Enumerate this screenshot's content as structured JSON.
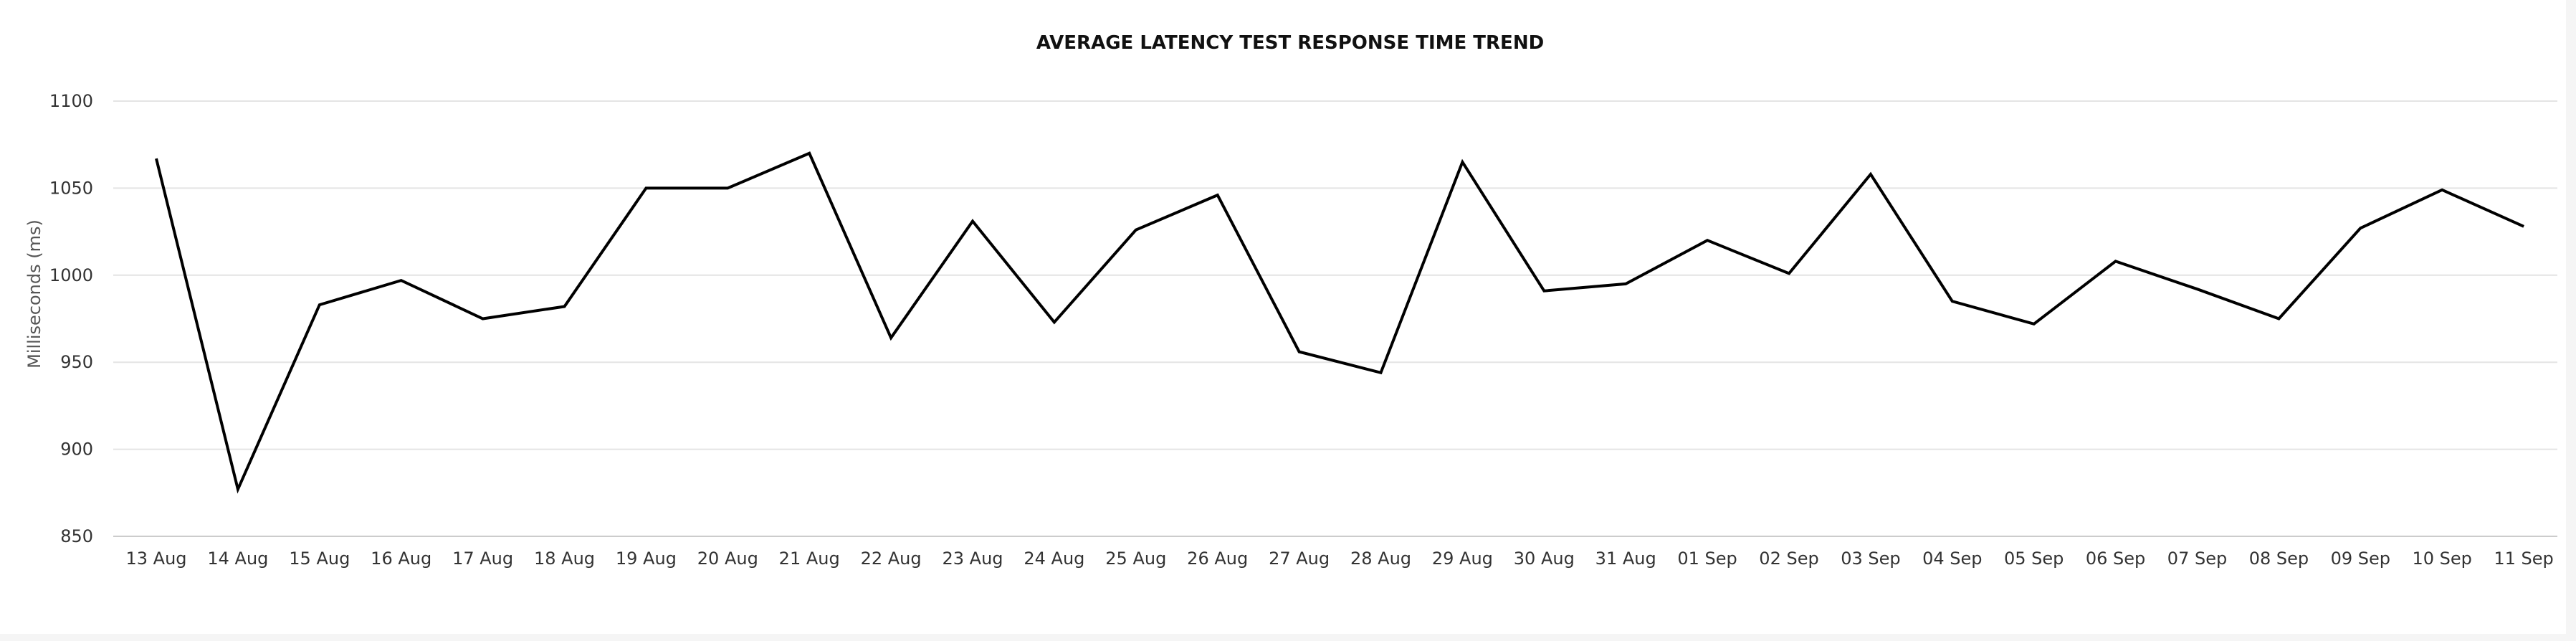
{
  "chart_data": {
    "type": "line",
    "title": "AVERAGE LATENCY TEST RESPONSE TIME TREND",
    "xlabel": "",
    "ylabel": "Milliseconds (ms)",
    "ylim": [
      850,
      1100
    ],
    "yticks": [
      850,
      900,
      950,
      1000,
      1050,
      1100
    ],
    "grid": true,
    "legend": "none",
    "categories": [
      "13 Aug",
      "14 Aug",
      "15 Aug",
      "16 Aug",
      "17 Aug",
      "18 Aug",
      "19 Aug",
      "20 Aug",
      "21 Aug",
      "22 Aug",
      "23 Aug",
      "24 Aug",
      "25 Aug",
      "26 Aug",
      "27 Aug",
      "28 Aug",
      "29 Aug",
      "30 Aug",
      "31 Aug",
      "01 Sep",
      "02 Sep",
      "03 Sep",
      "04 Sep",
      "05 Sep",
      "06 Sep",
      "07 Sep",
      "08 Sep",
      "09 Sep",
      "10 Sep",
      "11 Sep"
    ],
    "series": [
      {
        "values": [
          1067,
          877,
          983,
          997,
          975,
          982,
          1050,
          1050,
          1070,
          964,
          1031,
          973,
          1026,
          1046,
          956,
          944,
          1065,
          991,
          995,
          1020,
          1001,
          1058,
          985,
          972,
          1008,
          992,
          975,
          1027,
          1049,
          1028
        ],
        "color": "#000000"
      }
    ]
  }
}
